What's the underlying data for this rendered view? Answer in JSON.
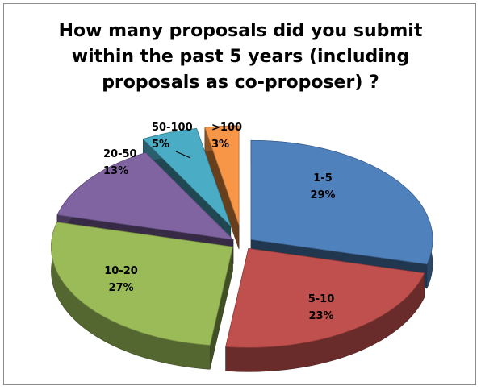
{
  "chart_data": {
    "type": "pie",
    "title_lines": [
      "How many proposals did you submit",
      "within the past 5 years (including",
      "proposals as co-proposer) ?"
    ],
    "slices": [
      {
        "label": "1-5",
        "pct_label": "29%",
        "value": 29,
        "color": "#4f81bd"
      },
      {
        "label": "5-10",
        "pct_label": "23%",
        "value": 23,
        "color": "#c0504d"
      },
      {
        "label": "10-20",
        "pct_label": "27%",
        "value": 27,
        "color": "#9bbb59"
      },
      {
        "label": "20-50",
        "pct_label": "13%",
        "value": 13,
        "color": "#8064a2"
      },
      {
        "label": "50-100",
        "pct_label": "5%",
        "value": 5,
        "color": "#4bacc6"
      },
      {
        "label": ">100",
        "pct_label": "3%",
        "value": 3,
        "color": "#f79646"
      }
    ],
    "style": "3d-exploded"
  }
}
